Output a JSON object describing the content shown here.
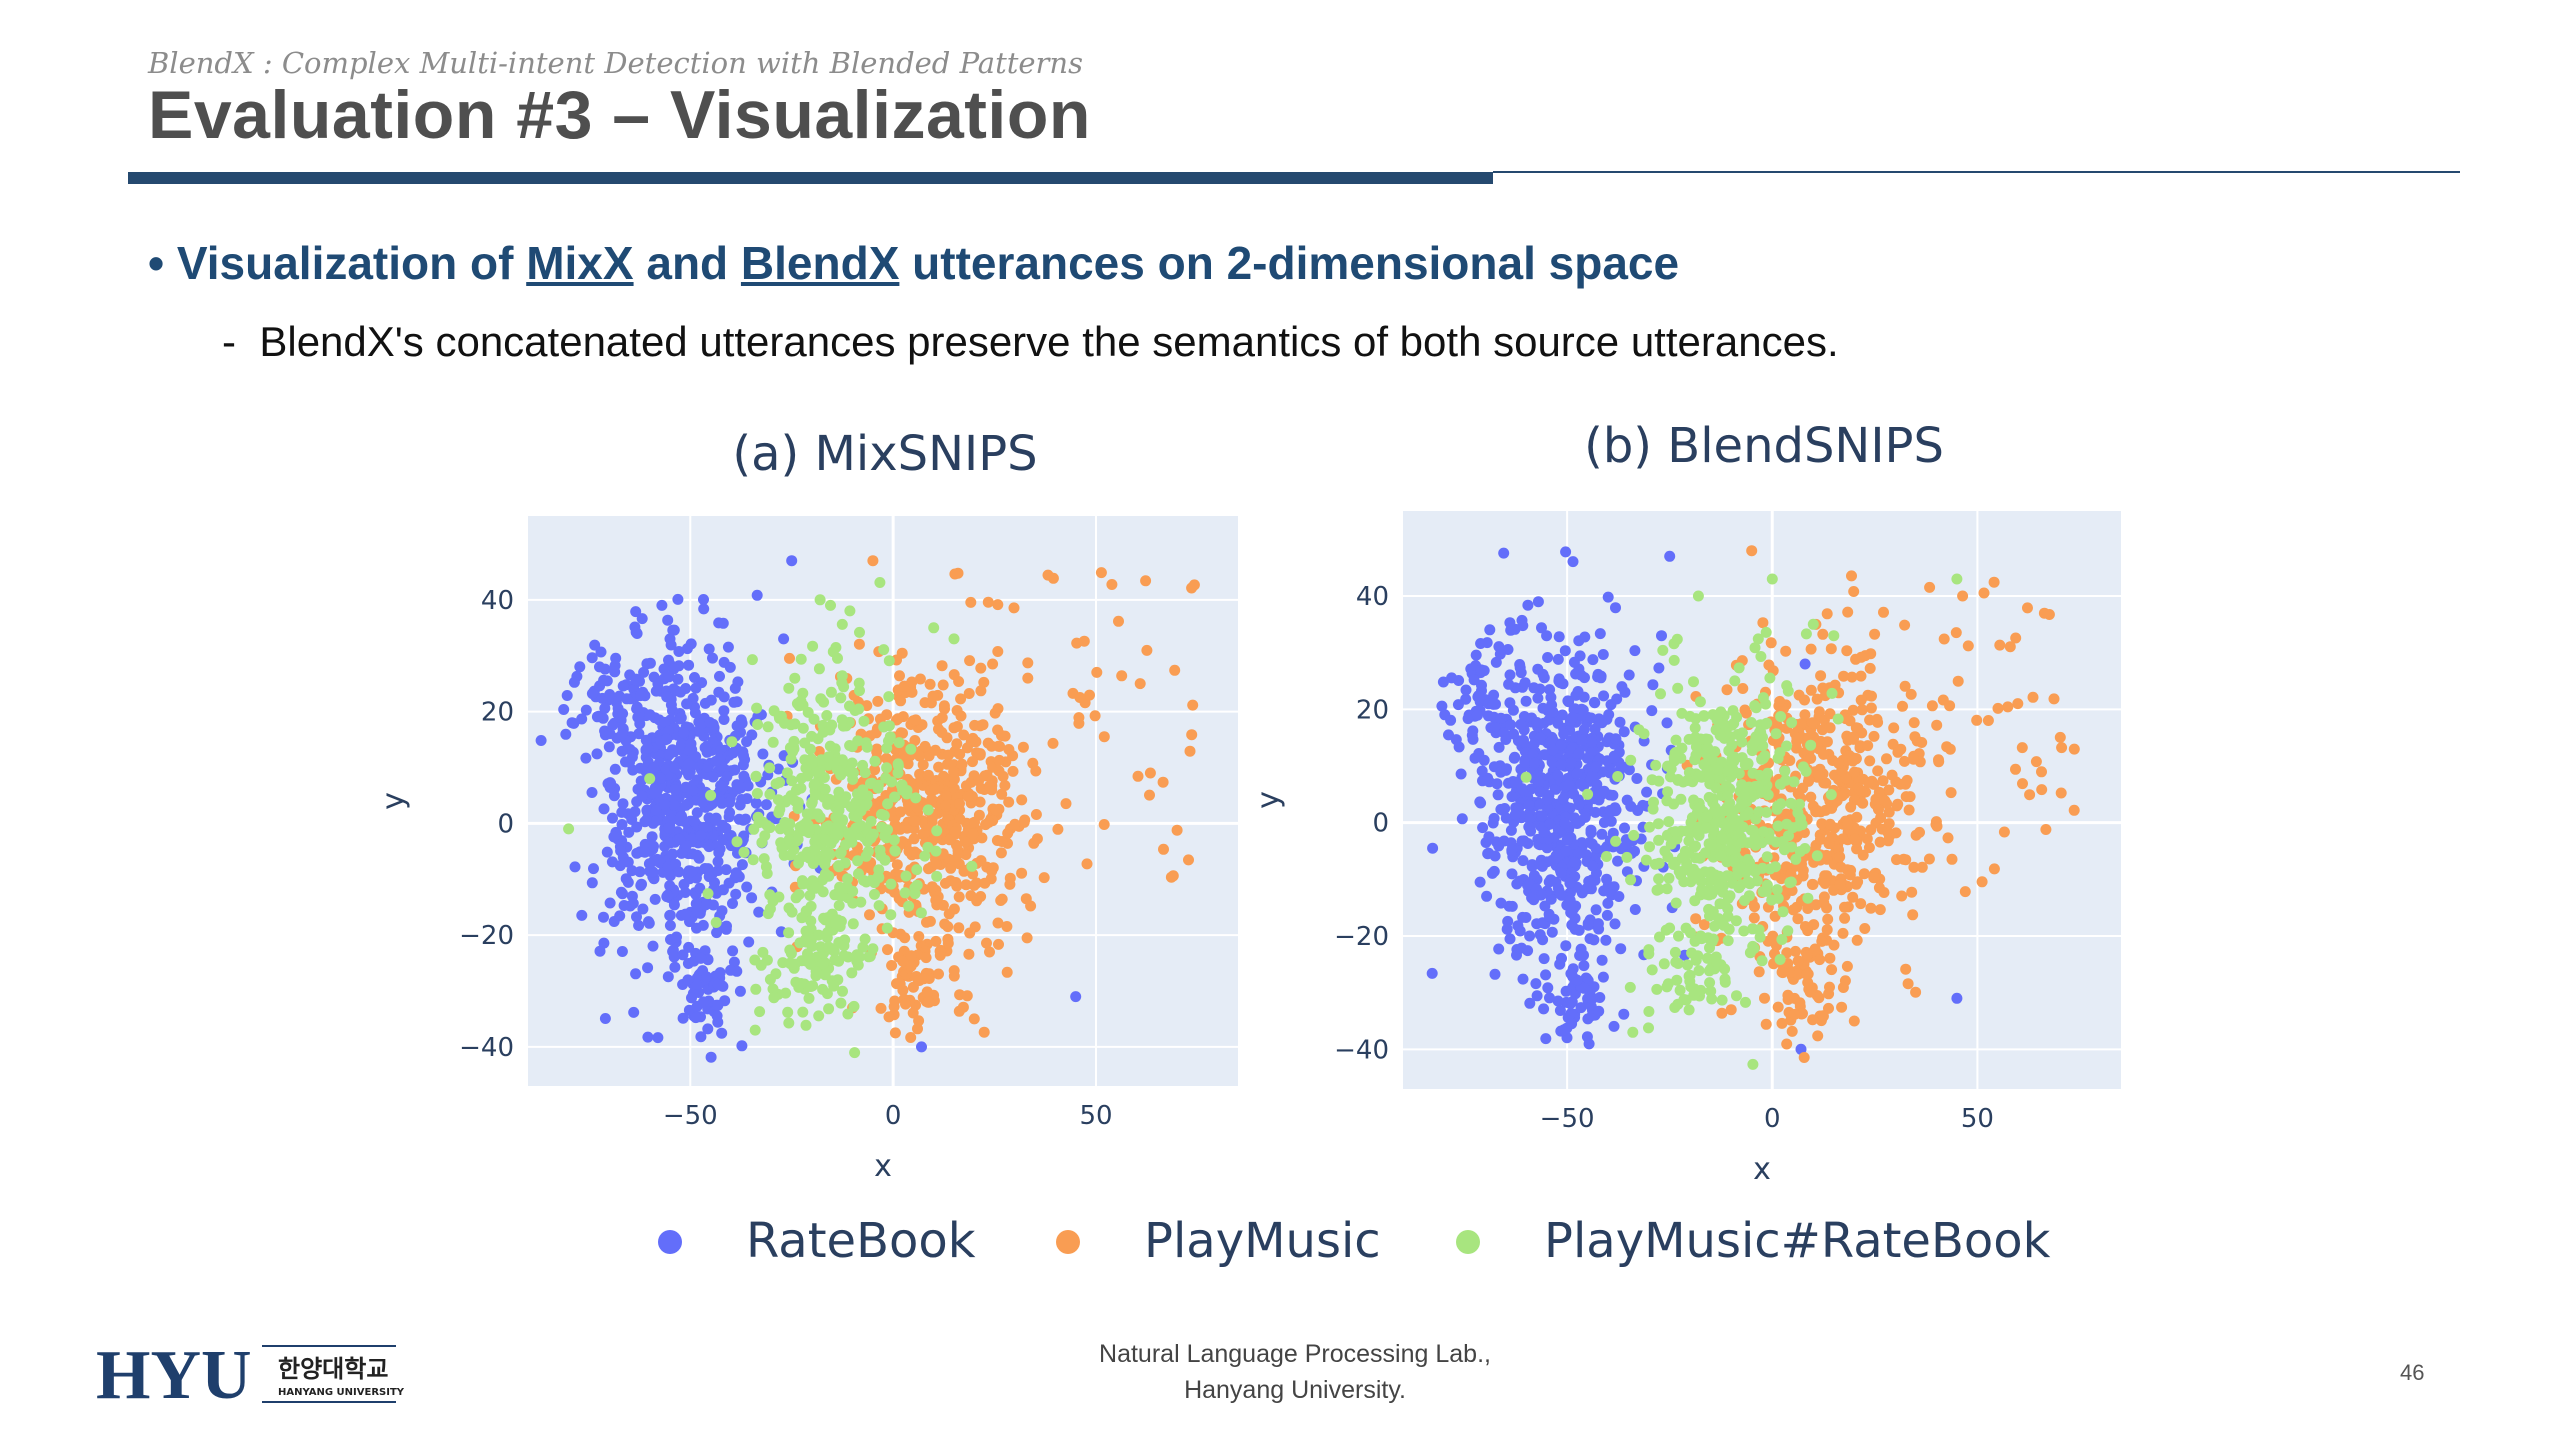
{
  "header": {
    "subtitle": "BlendX : Complex Multi-intent Detection with Blended Patterns",
    "title": "Evaluation #3 – Visualization"
  },
  "bullet": {
    "prefix": "Visualization of ",
    "mixx": "MixX",
    "and": " and ",
    "blendx": "BlendX",
    "suffix": " utterances on 2-dimensional space"
  },
  "subbullet": {
    "dash": "-",
    "text": "BlendX's concatenated utterances preserve the semantics of both source utterances."
  },
  "colors": {
    "RateBook": "#636efa",
    "PlayMusic": "#f99d53",
    "PlayMusic#RateBook": "#a8e57f",
    "plot_bg": "#e5ecf6",
    "accent": "#25496f"
  },
  "chart_data": [
    {
      "type": "scatter",
      "title": "(a) MixSNIPS",
      "xlabel": "x",
      "ylabel": "y",
      "xlim": [
        -90,
        85
      ],
      "ylim": [
        -47,
        55
      ],
      "xticks": [
        -50,
        0,
        50
      ],
      "yticks": [
        -40,
        -20,
        0,
        20,
        40
      ],
      "grid": true,
      "series": [
        {
          "name": "RateBook",
          "clusters": [
            {
              "cx": -52,
              "cy": 5,
              "sx": 10,
              "sy": 14,
              "n": 650
            },
            {
              "cx": -47,
              "cy": -30,
              "sx": 4,
              "sy": 4,
              "n": 60
            },
            {
              "cx": -70,
              "cy": 22,
              "sx": 5,
              "sy": 5,
              "n": 50
            }
          ],
          "points": [
            [
              -25,
              47
            ],
            [
              -57,
              39
            ],
            [
              -55,
              33
            ],
            [
              45,
              -31
            ],
            [
              7,
              -40
            ],
            [
              -27,
              33
            ],
            [
              -23,
              3
            ],
            [
              -18,
              -8
            ]
          ]
        },
        {
          "name": "PlayMusic",
          "clusters": [
            {
              "cx": 8,
              "cy": 2,
              "sx": 12,
              "sy": 12,
              "n": 520
            },
            {
              "cx": 7,
              "cy": -27,
              "sx": 6,
              "sy": 5,
              "n": 60
            }
          ],
          "scatter_region": {
            "x": [
              15,
              75
            ],
            "y": [
              -12,
              45
            ],
            "n": 70
          },
          "points": [
            [
              -5,
              47
            ],
            [
              20,
              -35
            ],
            [
              -10,
              -33
            ]
          ]
        },
        {
          "name": "PlayMusic#RateBook",
          "clusters": [
            {
              "cx": -16,
              "cy": 0,
              "sx": 10,
              "sy": 13,
              "n": 430
            },
            {
              "cx": -20,
              "cy": -26,
              "sx": 6,
              "sy": 4,
              "n": 60
            }
          ],
          "points": [
            [
              -18,
              40
            ],
            [
              -34,
              -37
            ],
            [
              -60,
              8
            ],
            [
              -45,
              5
            ],
            [
              10,
              35
            ],
            [
              15,
              33
            ],
            [
              -80,
              -1
            ]
          ]
        }
      ]
    },
    {
      "type": "scatter",
      "title": "(b) BlendSNIPS",
      "xlabel": "x",
      "ylabel": "y",
      "xlim": [
        -90,
        85
      ],
      "ylim": [
        -47,
        55
      ],
      "xticks": [
        -50,
        0,
        50
      ],
      "yticks": [
        -40,
        -20,
        0,
        20,
        40
      ],
      "grid": true,
      "series": [
        {
          "name": "RateBook",
          "clusters": [
            {
              "cx": -52,
              "cy": 5,
              "sx": 10,
              "sy": 14,
              "n": 650
            },
            {
              "cx": -47,
              "cy": -30,
              "sx": 4,
              "sy": 4,
              "n": 60
            },
            {
              "cx": -70,
              "cy": 22,
              "sx": 5,
              "sy": 5,
              "n": 50
            }
          ],
          "points": [
            [
              -25,
              47
            ],
            [
              -57,
              39
            ],
            [
              -55,
              33
            ],
            [
              45,
              -31
            ],
            [
              7,
              -40
            ],
            [
              -27,
              33
            ],
            [
              8,
              28
            ]
          ]
        },
        {
          "name": "PlayMusic",
          "clusters": [
            {
              "cx": 10,
              "cy": 3,
              "sx": 12,
              "sy": 13,
              "n": 520
            },
            {
              "cx": 7,
              "cy": -27,
              "sx": 6,
              "sy": 5,
              "n": 60
            }
          ],
          "scatter_region": {
            "x": [
              15,
              75
            ],
            "y": [
              -12,
              45
            ],
            "n": 70
          },
          "points": [
            [
              -5,
              48
            ],
            [
              20,
              -35
            ],
            [
              -10,
              -33
            ]
          ]
        },
        {
          "name": "PlayMusic#RateBook",
          "clusters": [
            {
              "cx": -12,
              "cy": 2,
              "sx": 10,
              "sy": 12,
              "n": 450
            },
            {
              "cx": -20,
              "cy": -26,
              "sx": 6,
              "sy": 4,
              "n": 60
            }
          ],
          "points": [
            [
              -18,
              40
            ],
            [
              -34,
              -37
            ],
            [
              -60,
              8
            ],
            [
              -45,
              5
            ],
            [
              10,
              35
            ],
            [
              15,
              33
            ],
            [
              0,
              43
            ],
            [
              45,
              43
            ]
          ]
        }
      ]
    }
  ],
  "legend": [
    {
      "label": "RateBook",
      "series": "RateBook"
    },
    {
      "label": "PlayMusic",
      "series": "PlayMusic"
    },
    {
      "label": "PlayMusic#RateBook",
      "series": "PlayMusic#RateBook"
    }
  ],
  "footer": {
    "logo_text": "HYU",
    "logo_korean": "한양대학교",
    "logo_english": "HANYANG UNIVERSITY",
    "lab_line1": "Natural Language Processing Lab.,",
    "lab_line2": "Hanyang University.",
    "page_number": "46"
  }
}
